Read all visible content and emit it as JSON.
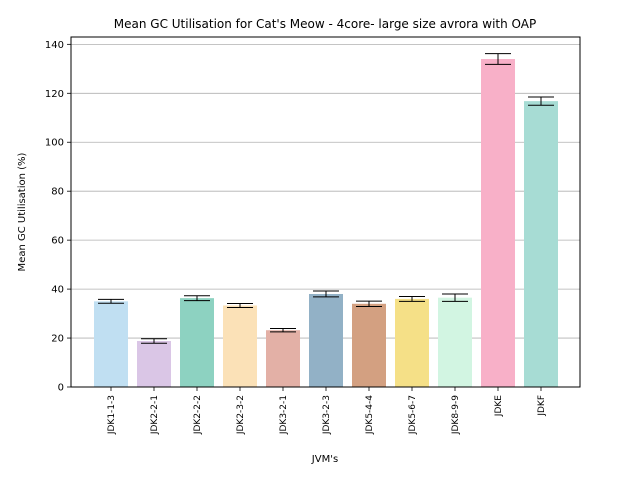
{
  "chart_data": {
    "type": "bar",
    "title": "Mean GC Utilisation for Cat's Meow - 4core- large size avrora with OAP",
    "xlabel": "JVM's",
    "ylabel": "Mean GC Utilisation (%)",
    "ylim": [
      0,
      143
    ],
    "yticks": [
      0,
      20,
      40,
      60,
      80,
      100,
      120,
      140
    ],
    "grid": "horizontal",
    "categories": [
      "JDK1-1-3",
      "JDK2-2-1",
      "JDK2-2-2",
      "JDK2-3-2",
      "JDK3-2-1",
      "JDK3-2-3",
      "JDK5-4-4",
      "JDK5-6-7",
      "JDK8-9-9",
      "JDKE",
      "JDKF"
    ],
    "values": [
      35.0,
      18.8,
      36.3,
      33.3,
      23.2,
      38.0,
      34.0,
      36.0,
      36.5,
      134.0,
      116.8
    ],
    "errors": [
      0.8,
      0.9,
      1.0,
      0.8,
      0.7,
      1.2,
      1.1,
      1.0,
      1.5,
      2.2,
      1.7
    ],
    "colors": [
      "#c0dff2",
      "#dac6e6",
      "#8dd2c1",
      "#fbe1b7",
      "#e3b0a6",
      "#92b1c6",
      "#d3a081",
      "#f5e087",
      "#d2f5e2",
      "#f8b0c8",
      "#a7dcd4"
    ]
  }
}
